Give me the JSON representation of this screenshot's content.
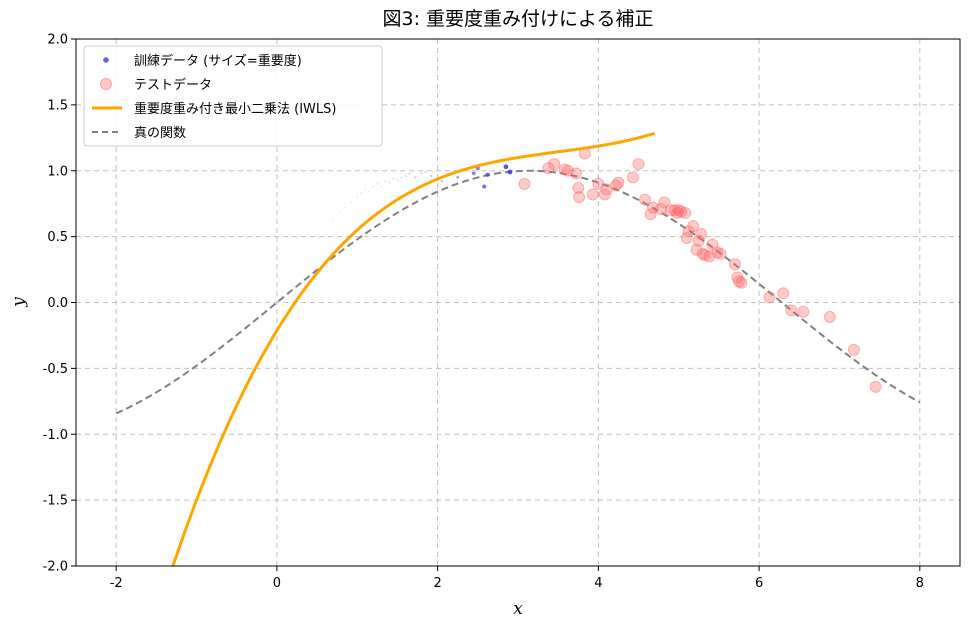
{
  "chart_data": {
    "type": "scatter",
    "title": "図3: 重要度重み付けによる補正",
    "xlabel": "x",
    "ylabel": "y",
    "xlim": [
      -2.5,
      8.5
    ],
    "ylim": [
      -2.0,
      2.0
    ],
    "xticks": [
      -2,
      0,
      2,
      4,
      6,
      8
    ],
    "yticks": [
      -2.0,
      -1.5,
      -1.0,
      -0.5,
      0.0,
      0.5,
      1.0,
      1.5,
      2.0
    ],
    "xtick_labels": [
      "-2",
      "0",
      "2",
      "4",
      "6",
      "8"
    ],
    "ytick_labels": [
      "-2.0",
      "-1.5",
      "-1.0",
      "-0.5",
      "0.0",
      "0.5",
      "1.0",
      "1.5",
      "2.0"
    ],
    "grid": true,
    "legend_position": "top-left",
    "series": [
      {
        "name": "訓練データ (サイズ=重要度)",
        "kind": "scatter",
        "color": "#3b3bdc",
        "points": [
          {
            "x": 0.7,
            "y": 0.62,
            "w": 0.05
          },
          {
            "x": 0.78,
            "y": 0.68,
            "w": 0.05
          },
          {
            "x": 0.85,
            "y": 0.72,
            "w": 0.05
          },
          {
            "x": 0.92,
            "y": 0.76,
            "w": 0.05
          },
          {
            "x": 1.0,
            "y": 0.8,
            "w": 0.08
          },
          {
            "x": 1.05,
            "y": 0.83,
            "w": 0.08
          },
          {
            "x": 1.1,
            "y": 0.86,
            "w": 0.08
          },
          {
            "x": 1.15,
            "y": 0.84,
            "w": 0.08
          },
          {
            "x": 1.2,
            "y": 0.88,
            "w": 0.1
          },
          {
            "x": 1.25,
            "y": 0.9,
            "w": 0.1
          },
          {
            "x": 1.3,
            "y": 0.88,
            "w": 0.1
          },
          {
            "x": 1.35,
            "y": 0.92,
            "w": 0.12
          },
          {
            "x": 1.4,
            "y": 0.91,
            "w": 0.12
          },
          {
            "x": 1.45,
            "y": 0.94,
            "w": 0.12
          },
          {
            "x": 1.5,
            "y": 0.93,
            "w": 0.15
          },
          {
            "x": 1.55,
            "y": 0.95,
            "w": 0.15
          },
          {
            "x": 1.6,
            "y": 0.96,
            "w": 0.18
          },
          {
            "x": 1.65,
            "y": 0.98,
            "w": 0.18
          },
          {
            "x": 1.72,
            "y": 0.95,
            "w": 0.2
          },
          {
            "x": 1.8,
            "y": 0.98,
            "w": 0.2
          },
          {
            "x": 1.85,
            "y": 0.99,
            "w": 0.22
          },
          {
            "x": 1.92,
            "y": 0.96,
            "w": 0.25
          },
          {
            "x": 2.05,
            "y": 0.92,
            "w": 0.3
          },
          {
            "x": 2.25,
            "y": 0.95,
            "w": 0.45
          },
          {
            "x": 2.45,
            "y": 0.98,
            "w": 0.7
          },
          {
            "x": 2.5,
            "y": 1.02,
            "w": 0.75
          },
          {
            "x": 2.58,
            "y": 0.88,
            "w": 0.8
          },
          {
            "x": 2.62,
            "y": 0.97,
            "w": 0.85
          },
          {
            "x": 2.85,
            "y": 1.03,
            "w": 1.0
          },
          {
            "x": 2.9,
            "y": 0.99,
            "w": 1.0
          }
        ]
      },
      {
        "name": "テストデータ",
        "kind": "scatter",
        "color": "#ff6666",
        "points": [
          {
            "x": 3.08,
            "y": 0.9
          },
          {
            "x": 3.38,
            "y": 1.02
          },
          {
            "x": 3.45,
            "y": 1.05
          },
          {
            "x": 3.58,
            "y": 1.01
          },
          {
            "x": 3.62,
            "y": 1.0
          },
          {
            "x": 3.72,
            "y": 0.98
          },
          {
            "x": 3.75,
            "y": 0.87
          },
          {
            "x": 3.76,
            "y": 0.8
          },
          {
            "x": 3.83,
            "y": 1.13
          },
          {
            "x": 3.93,
            "y": 0.82
          },
          {
            "x": 4.0,
            "y": 0.9
          },
          {
            "x": 4.08,
            "y": 0.82
          },
          {
            "x": 4.1,
            "y": 0.86
          },
          {
            "x": 4.22,
            "y": 0.89
          },
          {
            "x": 4.25,
            "y": 0.91
          },
          {
            "x": 4.43,
            "y": 0.95
          },
          {
            "x": 4.5,
            "y": 1.05
          },
          {
            "x": 4.58,
            "y": 0.78
          },
          {
            "x": 4.65,
            "y": 0.67
          },
          {
            "x": 4.68,
            "y": 0.72
          },
          {
            "x": 4.78,
            "y": 0.71
          },
          {
            "x": 4.82,
            "y": 0.76
          },
          {
            "x": 4.9,
            "y": 0.7
          },
          {
            "x": 4.95,
            "y": 0.7
          },
          {
            "x": 4.98,
            "y": 0.68
          },
          {
            "x": 5.0,
            "y": 0.7
          },
          {
            "x": 5.03,
            "y": 0.69
          },
          {
            "x": 5.08,
            "y": 0.68
          },
          {
            "x": 5.1,
            "y": 0.49
          },
          {
            "x": 5.12,
            "y": 0.54
          },
          {
            "x": 5.18,
            "y": 0.58
          },
          {
            "x": 5.22,
            "y": 0.4
          },
          {
            "x": 5.25,
            "y": 0.47
          },
          {
            "x": 5.28,
            "y": 0.52
          },
          {
            "x": 5.3,
            "y": 0.37
          },
          {
            "x": 5.33,
            "y": 0.36
          },
          {
            "x": 5.38,
            "y": 0.35
          },
          {
            "x": 5.42,
            "y": 0.44
          },
          {
            "x": 5.48,
            "y": 0.38
          },
          {
            "x": 5.52,
            "y": 0.37
          },
          {
            "x": 5.7,
            "y": 0.29
          },
          {
            "x": 5.73,
            "y": 0.19
          },
          {
            "x": 5.75,
            "y": 0.16
          },
          {
            "x": 5.78,
            "y": 0.15
          },
          {
            "x": 6.13,
            "y": 0.04
          },
          {
            "x": 6.3,
            "y": 0.07
          },
          {
            "x": 6.4,
            "y": -0.06
          },
          {
            "x": 6.55,
            "y": -0.07
          },
          {
            "x": 6.88,
            "y": -0.11
          },
          {
            "x": 7.18,
            "y": -0.36
          },
          {
            "x": 7.45,
            "y": -0.64
          }
        ]
      },
      {
        "name": "重要度重み付き最小二乗法 (IWLS)",
        "kind": "line",
        "color": "#ffa500",
        "coefficients": [
          -0.2125,
          1.0,
          -0.2625,
          0.025
        ]
      },
      {
        "name": "真の関数",
        "kind": "dashed-line",
        "color": "#808080",
        "x_range": [
          -2,
          8
        ],
        "function": "sin(x / 2)"
      }
    ]
  }
}
